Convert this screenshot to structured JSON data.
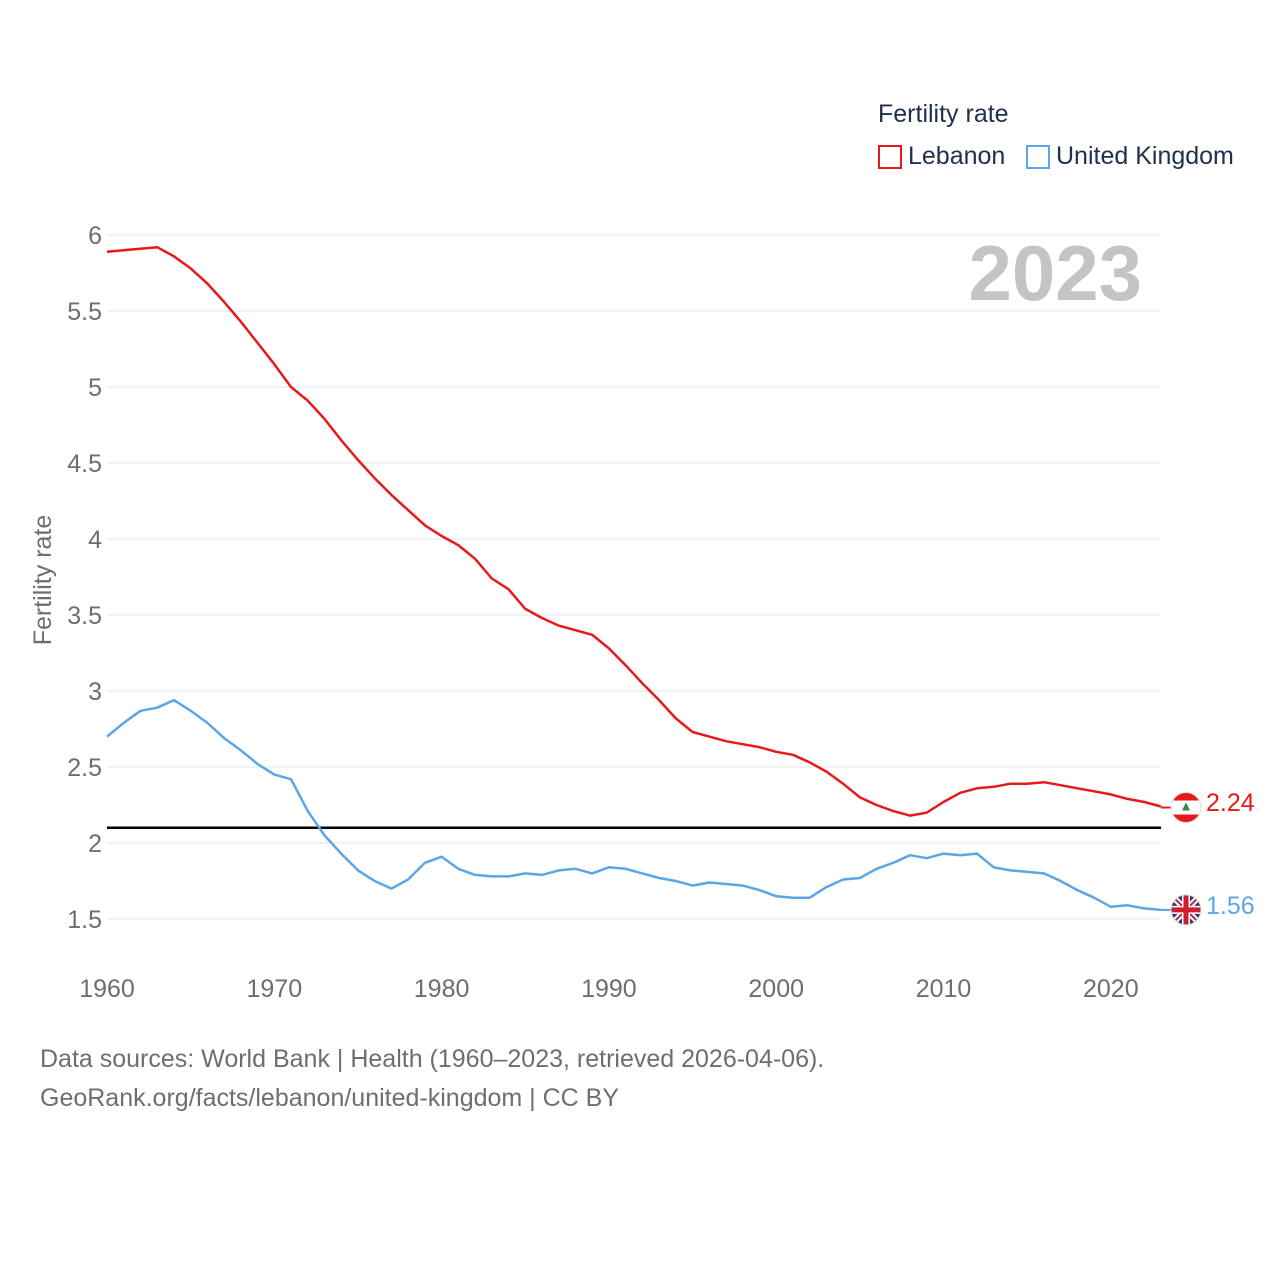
{
  "legend": {
    "title": "Fertility rate",
    "items": [
      {
        "label": "Lebanon",
        "color": "#e8191b"
      },
      {
        "label": "United Kingdom",
        "color": "#5ca6e6"
      }
    ]
  },
  "year_display": "2023",
  "footer": {
    "line1": "Data sources: World Bank | Health (1960–2023, retrieved 2026-04-06).",
    "line2": "GeoRank.org/facts/lebanon/united-kingdom | CC BY"
  },
  "end_labels": {
    "lebanon": "2.24",
    "united_kingdom": "1.56",
    "lebanon_flag_icon": "lebanon-flag-icon",
    "uk_flag_icon": "united-kingdom-flag-icon"
  },
  "chart_data": {
    "type": "line",
    "title": "Fertility rate",
    "xlabel": "",
    "ylabel": "Fertility rate",
    "xlim": [
      1960,
      2023
    ],
    "ylim": [
      1.5,
      6
    ],
    "x_ticks": [
      1960,
      1970,
      1980,
      1990,
      2000,
      2010,
      2020
    ],
    "y_ticks": [
      1.5,
      2,
      2.5,
      3,
      3.5,
      4,
      4.5,
      5,
      5.5,
      6
    ],
    "y_tick_labels": [
      "1.5",
      "2",
      "2.5",
      "3",
      "3.5",
      "4",
      "4.5",
      "5",
      "5.5",
      "6"
    ],
    "reference_line": {
      "y": 2.1,
      "color": "#000000"
    },
    "x": [
      1960,
      1961,
      1962,
      1963,
      1964,
      1965,
      1966,
      1967,
      1968,
      1969,
      1970,
      1971,
      1972,
      1973,
      1974,
      1975,
      1976,
      1977,
      1978,
      1979,
      1980,
      1981,
      1982,
      1983,
      1984,
      1985,
      1986,
      1987,
      1988,
      1989,
      1990,
      1991,
      1992,
      1993,
      1994,
      1995,
      1996,
      1997,
      1998,
      1999,
      2000,
      2001,
      2002,
      2003,
      2004,
      2005,
      2006,
      2007,
      2008,
      2009,
      2010,
      2011,
      2012,
      2013,
      2014,
      2015,
      2016,
      2017,
      2018,
      2019,
      2020,
      2021,
      2022,
      2023
    ],
    "series": [
      {
        "name": "Lebanon",
        "color": "#e8191b",
        "values": [
          5.89,
          5.9,
          5.91,
          5.92,
          5.86,
          5.78,
          5.68,
          5.56,
          5.43,
          5.29,
          5.15,
          5.0,
          4.91,
          4.79,
          4.65,
          4.52,
          4.4,
          4.29,
          4.19,
          4.09,
          4.02,
          3.96,
          3.87,
          3.74,
          3.67,
          3.54,
          3.48,
          3.43,
          3.4,
          3.37,
          3.28,
          3.17,
          3.05,
          2.94,
          2.82,
          2.73,
          2.7,
          2.67,
          2.65,
          2.63,
          2.6,
          2.58,
          2.53,
          2.47,
          2.39,
          2.3,
          2.25,
          2.21,
          2.18,
          2.2,
          2.27,
          2.33,
          2.36,
          2.37,
          2.39,
          2.39,
          2.4,
          2.38,
          2.36,
          2.34,
          2.32,
          2.29,
          2.27,
          2.24
        ]
      },
      {
        "name": "United Kingdom",
        "color": "#5ca6e6",
        "values": [
          2.7,
          2.79,
          2.87,
          2.89,
          2.94,
          2.87,
          2.79,
          2.69,
          2.61,
          2.52,
          2.45,
          2.42,
          2.21,
          2.05,
          1.93,
          1.82,
          1.75,
          1.7,
          1.76,
          1.87,
          1.91,
          1.83,
          1.79,
          1.78,
          1.78,
          1.8,
          1.79,
          1.82,
          1.83,
          1.8,
          1.84,
          1.83,
          1.8,
          1.77,
          1.75,
          1.72,
          1.74,
          1.73,
          1.72,
          1.69,
          1.65,
          1.64,
          1.64,
          1.71,
          1.76,
          1.77,
          1.83,
          1.87,
          1.92,
          1.9,
          1.93,
          1.92,
          1.93,
          1.84,
          1.82,
          1.81,
          1.8,
          1.75,
          1.69,
          1.64,
          1.58,
          1.59,
          1.57,
          1.56
        ]
      }
    ]
  }
}
